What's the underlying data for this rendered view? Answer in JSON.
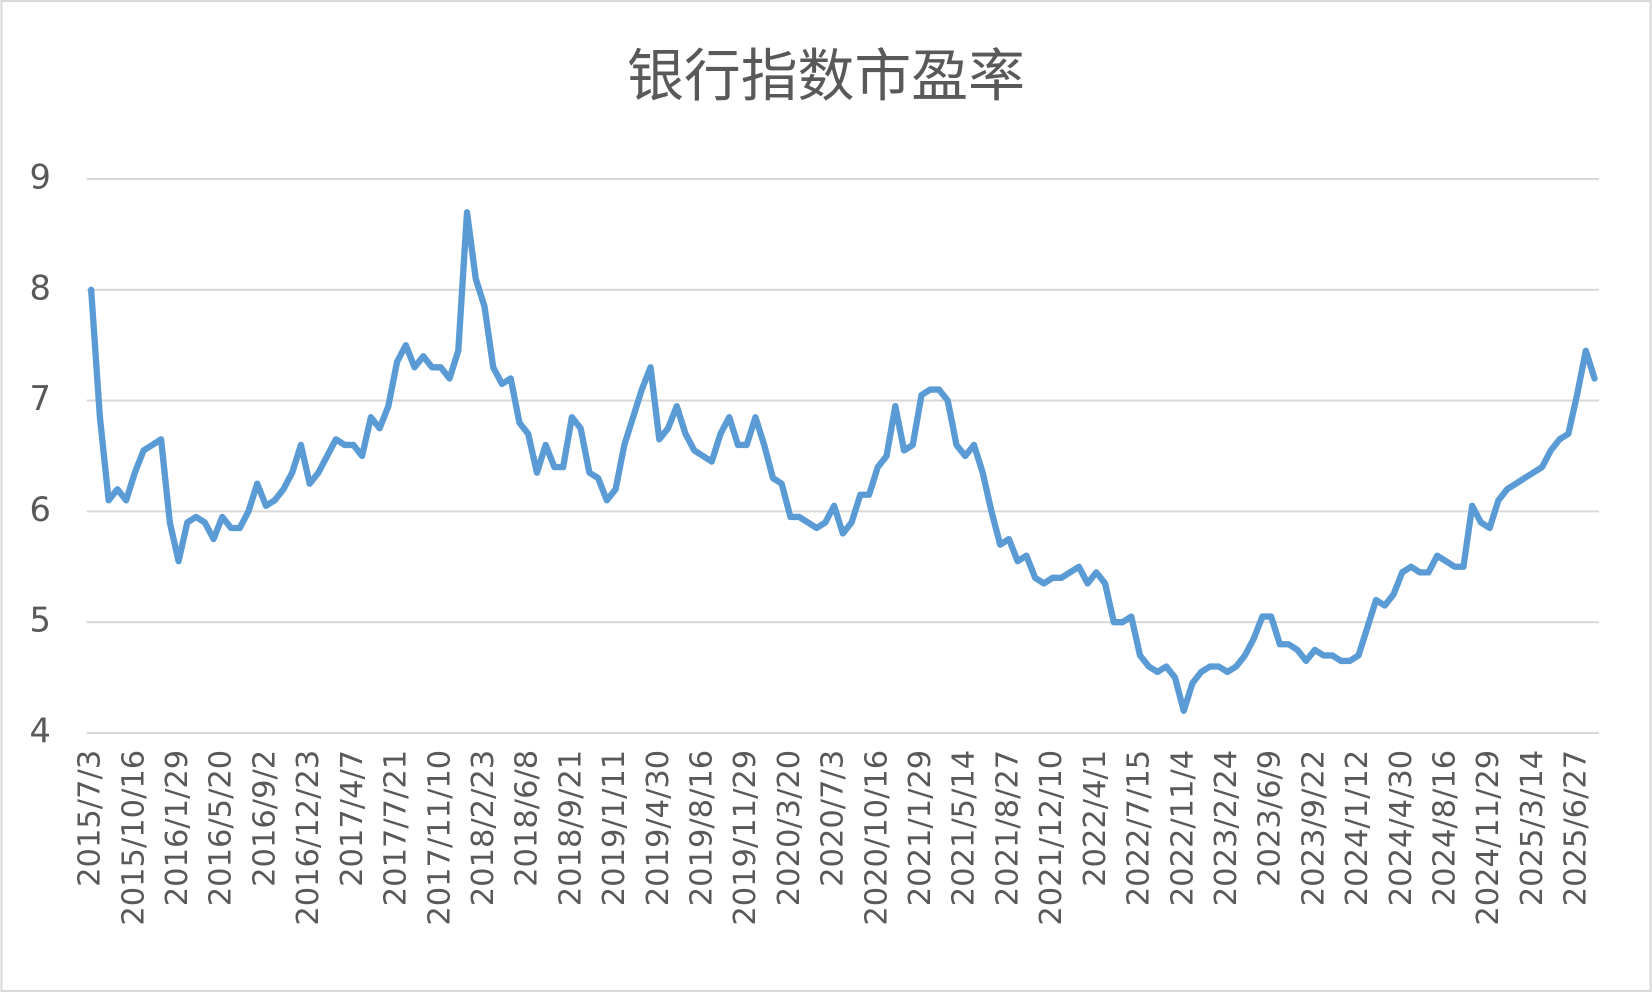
{
  "chart_data": {
    "type": "line",
    "title": "银行指数市盈率",
    "categories": [
      "2015/7/3",
      null,
      null,
      null,
      null,
      "2015/10/16",
      null,
      null,
      null,
      null,
      "2016/1/29",
      null,
      null,
      null,
      null,
      "2016/5/20",
      null,
      null,
      null,
      null,
      "2016/9/2",
      null,
      null,
      null,
      null,
      "2016/12/23",
      null,
      null,
      null,
      null,
      "2017/4/7",
      null,
      null,
      null,
      null,
      "2017/7/21",
      null,
      null,
      null,
      null,
      "2017/11/10",
      null,
      null,
      null,
      null,
      "2018/2/23",
      null,
      null,
      null,
      null,
      "2018/6/8",
      null,
      null,
      null,
      null,
      "2018/9/21",
      null,
      null,
      null,
      null,
      "2019/1/11",
      null,
      null,
      null,
      null,
      "2019/4/30",
      null,
      null,
      null,
      null,
      "2019/8/16",
      null,
      null,
      null,
      null,
      "2019/11/29",
      null,
      null,
      null,
      null,
      "2020/3/20",
      null,
      null,
      null,
      null,
      "2020/7/3",
      null,
      null,
      null,
      null,
      "2020/10/16",
      null,
      null,
      null,
      null,
      "2021/1/29",
      null,
      null,
      null,
      null,
      "2021/5/14",
      null,
      null,
      null,
      null,
      "2021/8/27",
      null,
      null,
      null,
      null,
      "2021/12/10",
      null,
      null,
      null,
      null,
      "2022/4/1",
      null,
      null,
      null,
      null,
      "2022/7/15",
      null,
      null,
      null,
      null,
      "2022/11/4",
      null,
      null,
      null,
      null,
      "2023/2/24",
      null,
      null,
      null,
      null,
      "2023/6/9",
      null,
      null,
      null,
      null,
      "2023/9/22",
      null,
      null,
      null,
      null,
      "2024/1/12",
      null,
      null,
      null,
      null,
      "2024/4/30",
      null,
      null,
      null,
      null,
      "2024/8/16",
      null,
      null,
      null,
      null,
      "2024/11/29",
      null,
      null,
      null,
      null,
      "2025/3/14",
      null,
      null,
      null,
      null,
      "2025/6/27",
      null,
      null
    ],
    "series": [
      {
        "color": "#5b9bd5",
        "values": [
          8.0,
          6.85,
          6.1,
          6.2,
          6.1,
          6.35,
          6.55,
          6.6,
          6.65,
          5.9,
          5.55,
          5.9,
          5.95,
          5.9,
          5.75,
          5.95,
          5.85,
          5.85,
          6.0,
          6.25,
          6.05,
          6.1,
          6.2,
          6.35,
          6.6,
          6.25,
          6.35,
          6.5,
          6.65,
          6.6,
          6.6,
          6.5,
          6.85,
          6.75,
          6.95,
          7.35,
          7.5,
          7.3,
          7.4,
          7.3,
          7.3,
          7.2,
          7.45,
          8.7,
          8.1,
          7.85,
          7.3,
          7.15,
          7.2,
          6.8,
          6.7,
          6.35,
          6.6,
          6.4,
          6.4,
          6.85,
          6.75,
          6.35,
          6.3,
          6.1,
          6.2,
          6.6,
          6.85,
          7.1,
          7.3,
          6.65,
          6.75,
          6.95,
          6.7,
          6.55,
          6.5,
          6.45,
          6.7,
          6.85,
          6.6,
          6.6,
          6.85,
          6.6,
          6.3,
          6.25,
          5.95,
          5.95,
          5.9,
          5.85,
          5.9,
          6.05,
          5.8,
          5.9,
          6.15,
          6.15,
          6.4,
          6.5,
          6.95,
          6.55,
          6.6,
          7.05,
          7.1,
          7.1,
          7.0,
          6.6,
          6.5,
          6.6,
          6.35,
          6.0,
          5.7,
          5.75,
          5.55,
          5.6,
          5.4,
          5.35,
          5.4,
          5.4,
          5.45,
          5.5,
          5.35,
          5.45,
          5.35,
          5.0,
          5.0,
          5.05,
          4.7,
          4.6,
          4.55,
          4.6,
          4.5,
          4.2,
          4.45,
          4.55,
          4.6,
          4.6,
          4.55,
          4.6,
          4.7,
          4.85,
          5.05,
          5.05,
          4.8,
          4.8,
          4.75,
          4.65,
          4.75,
          4.7,
          4.7,
          4.65,
          4.65,
          4.7,
          4.95,
          5.2,
          5.15,
          5.25,
          5.45,
          5.5,
          5.45,
          5.45,
          5.6,
          5.55,
          5.5,
          5.5,
          6.05,
          5.9,
          5.85,
          6.1,
          6.2,
          6.25,
          6.3,
          6.35,
          6.4,
          6.55,
          6.65,
          6.7,
          7.05,
          7.45,
          7.2
        ]
      }
    ],
    "ylim": [
      4,
      9
    ],
    "yticks": [
      4,
      5,
      6,
      7,
      8,
      9
    ],
    "grid": true
  }
}
